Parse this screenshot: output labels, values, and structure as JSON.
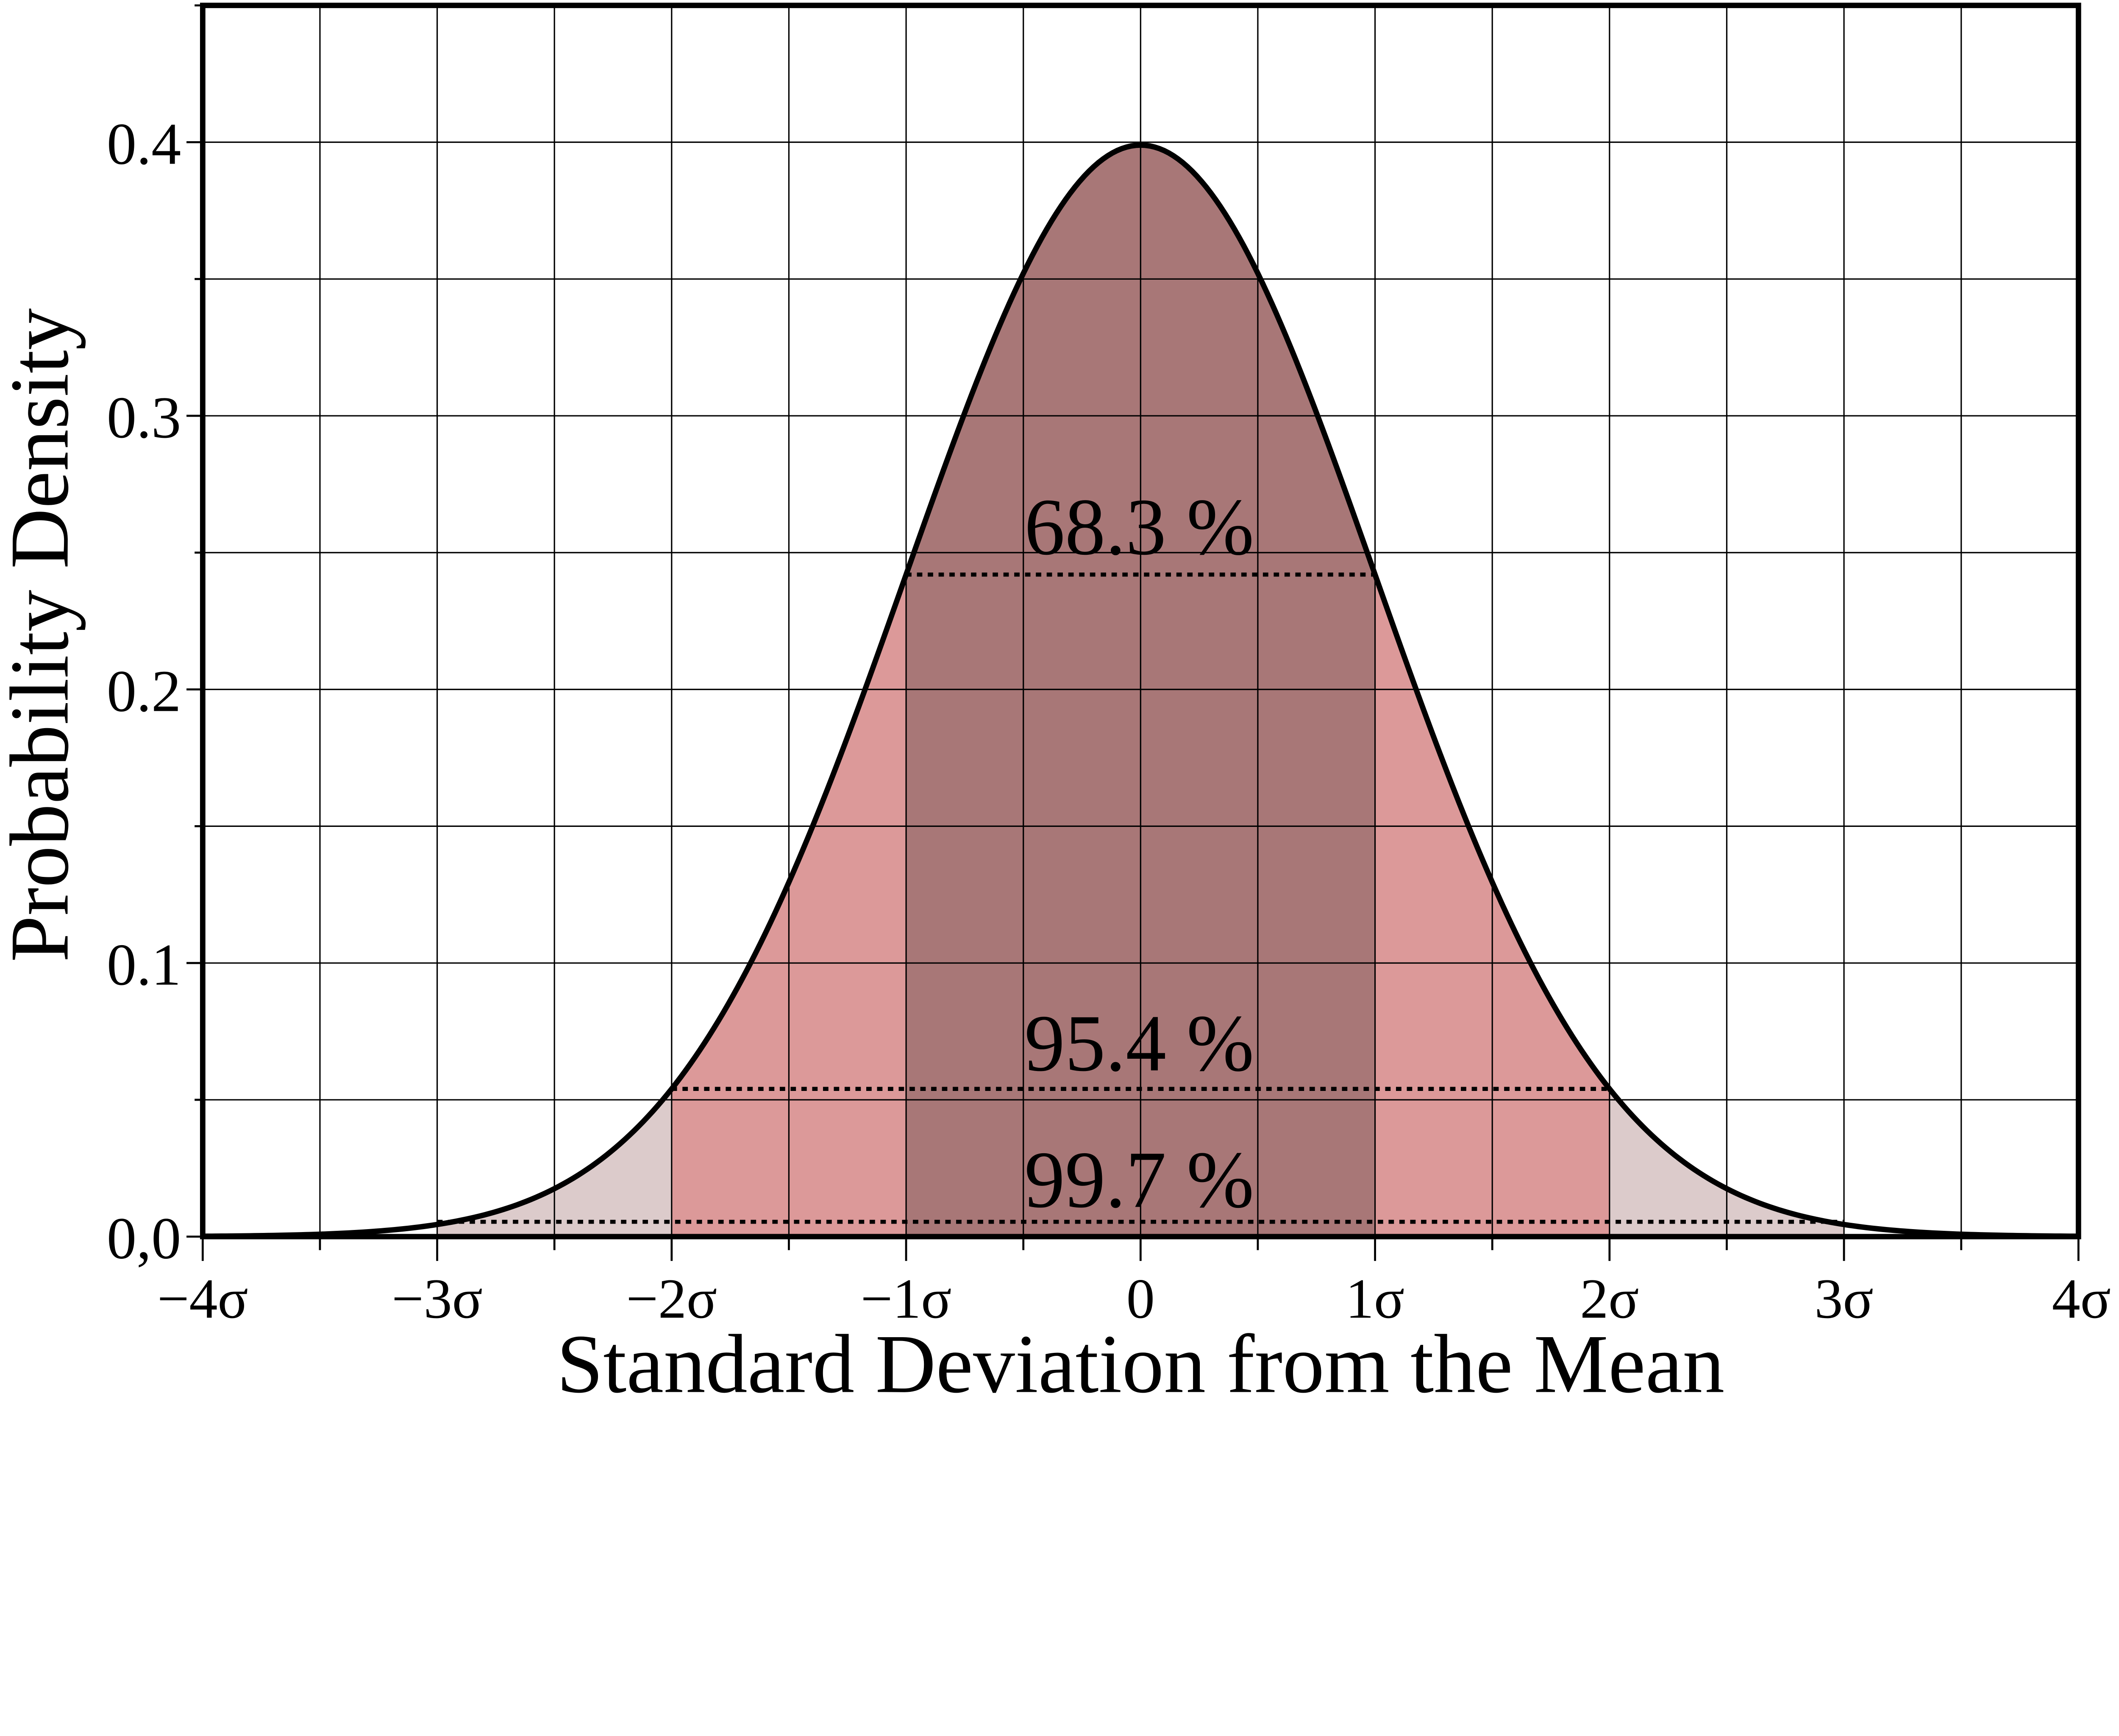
{
  "chart_data": {
    "type": "area",
    "title": "",
    "xlabel": "Standard Deviation from the Mean",
    "ylabel": "Probability Density",
    "xlim": [
      -4,
      4
    ],
    "ylim": [
      0,
      0.45
    ],
    "grid": true,
    "function": "standard normal pdf",
    "x_ticks": [
      -4,
      -3,
      -2,
      -1,
      0,
      1,
      2,
      3,
      4
    ],
    "x_tick_labels": [
      "−4σ",
      "−3σ",
      "−2σ",
      "−1σ",
      "0",
      "1σ",
      "2σ",
      "3σ",
      "4σ"
    ],
    "y_ticks": [
      0,
      0.1,
      0.2,
      0.3,
      0.4
    ],
    "y_tick_labels": [
      "0,0",
      "0.1",
      "0.2",
      "0.3",
      "0.4"
    ],
    "regions": [
      {
        "range": [
          -3,
          3
        ],
        "color": "#dccbcb"
      },
      {
        "range": [
          -2,
          2
        ],
        "color": "#dc9999"
      },
      {
        "range": [
          -1,
          1
        ],
        "color": "#a87777"
      }
    ],
    "annotations": [
      {
        "text": "68.3 %",
        "sigma": 1
      },
      {
        "text": "95.4 %",
        "sigma": 2
      },
      {
        "text": "99.7 %",
        "sigma": 3
      }
    ]
  }
}
